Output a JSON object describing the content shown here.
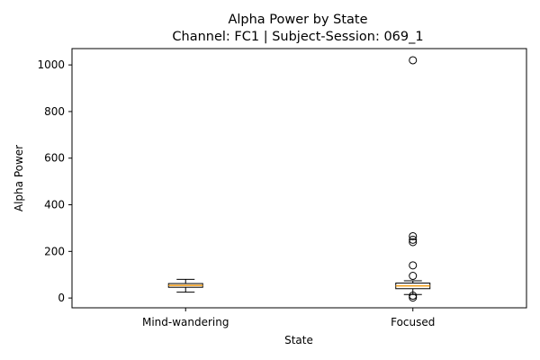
{
  "chart_data": {
    "type": "box",
    "title": "Alpha Power by State",
    "subtitle": "Channel: FC1 | Subject-Session: 069_1",
    "xlabel": "State",
    "ylabel": "Alpha Power",
    "ylim": [
      -42,
      1070
    ],
    "yticks": [
      0,
      200,
      400,
      600,
      800,
      1000
    ],
    "grid": false,
    "colors": {
      "median": "#f39c12",
      "box": "#000000",
      "outlier_edge": "#000000"
    },
    "series": [
      {
        "category": "Mind-wandering",
        "whisker_low": 25,
        "q1": 46,
        "median": 54,
        "q3": 62,
        "whisker_high": 80,
        "outliers": []
      },
      {
        "category": "Focused",
        "whisker_low": 15,
        "q1": 40,
        "median": 52,
        "q3": 64,
        "whisker_high": 74,
        "outliers": [
          2,
          10,
          95,
          140,
          240,
          250,
          265,
          1020
        ]
      }
    ]
  }
}
